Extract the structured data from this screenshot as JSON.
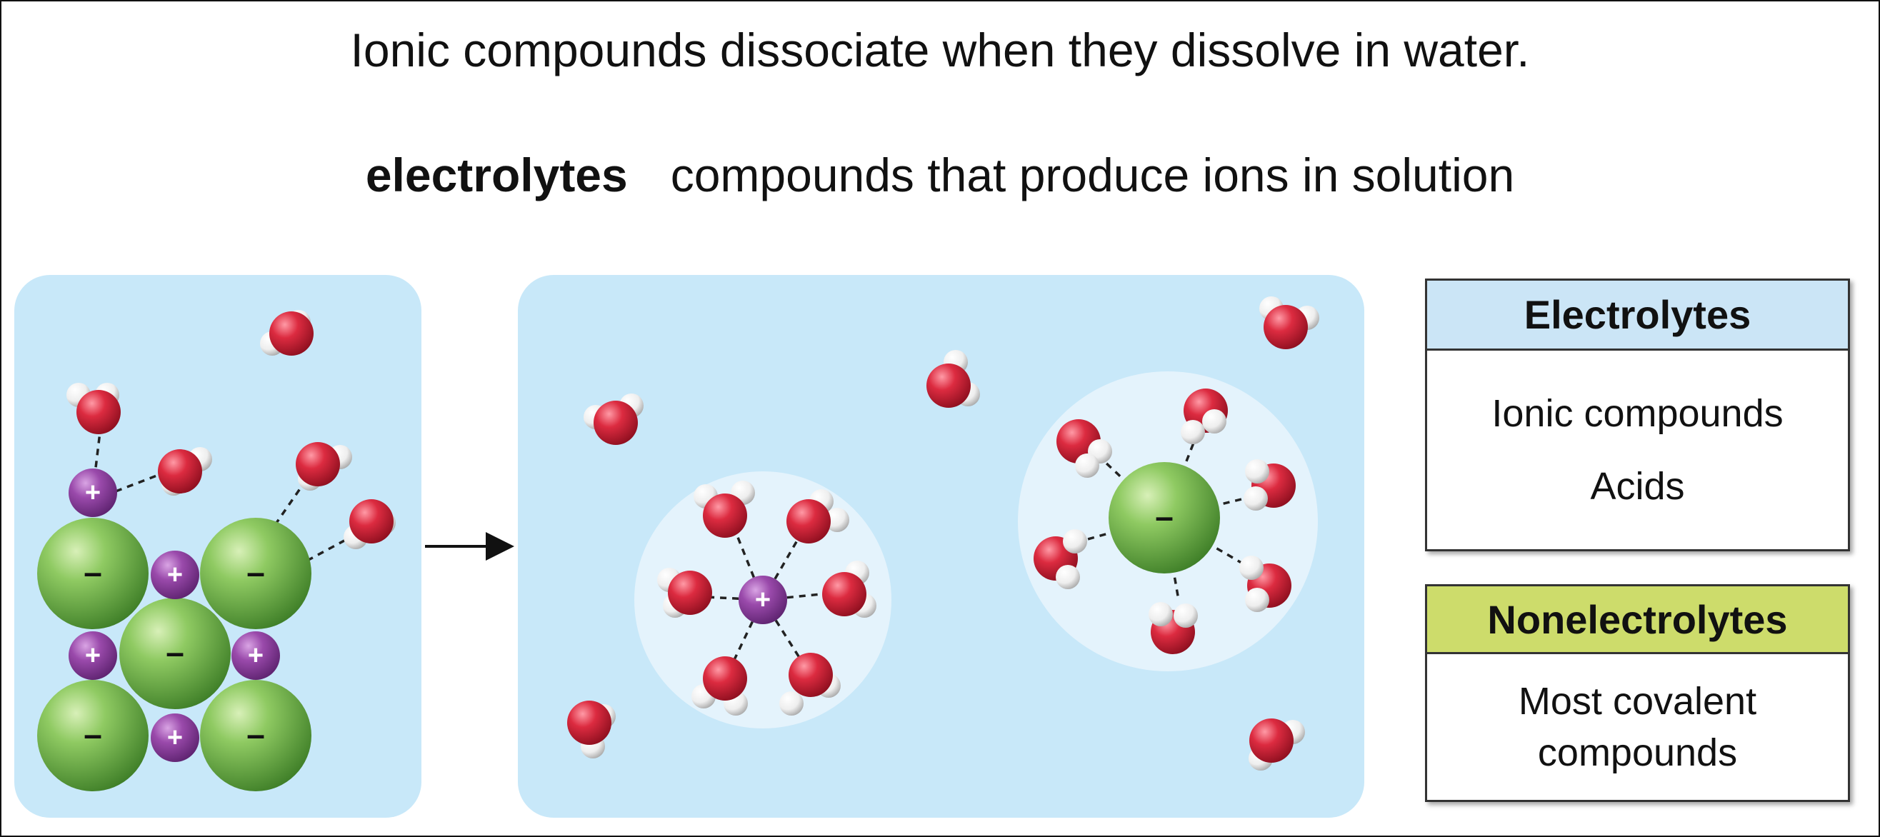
{
  "title": "Ionic compounds dissociate when they dissolve in water.",
  "definition": {
    "term": "electrolytes",
    "text": "compounds that produce ions in solution"
  },
  "ion_signs": {
    "cation": "+",
    "anion": "–"
  },
  "colors": {
    "panel": "#c8e8f9",
    "hydration_shell": "#e4f3fc",
    "cation": "#8b3e9c",
    "anion": "#6cae45",
    "oxygen": "#d3243a",
    "hydrogen": "#f2f2f2",
    "electrolytes_header": "#cbe5f6",
    "nonelectrolytes_header": "#cddc6b"
  },
  "electrolytes_box": {
    "header": "Electrolytes",
    "items": [
      "Ionic compounds",
      "Acids"
    ]
  },
  "nonelectrolytes_box": {
    "header": "Nonelectrolytes",
    "items": [
      "Most covalent",
      "compounds"
    ]
  }
}
